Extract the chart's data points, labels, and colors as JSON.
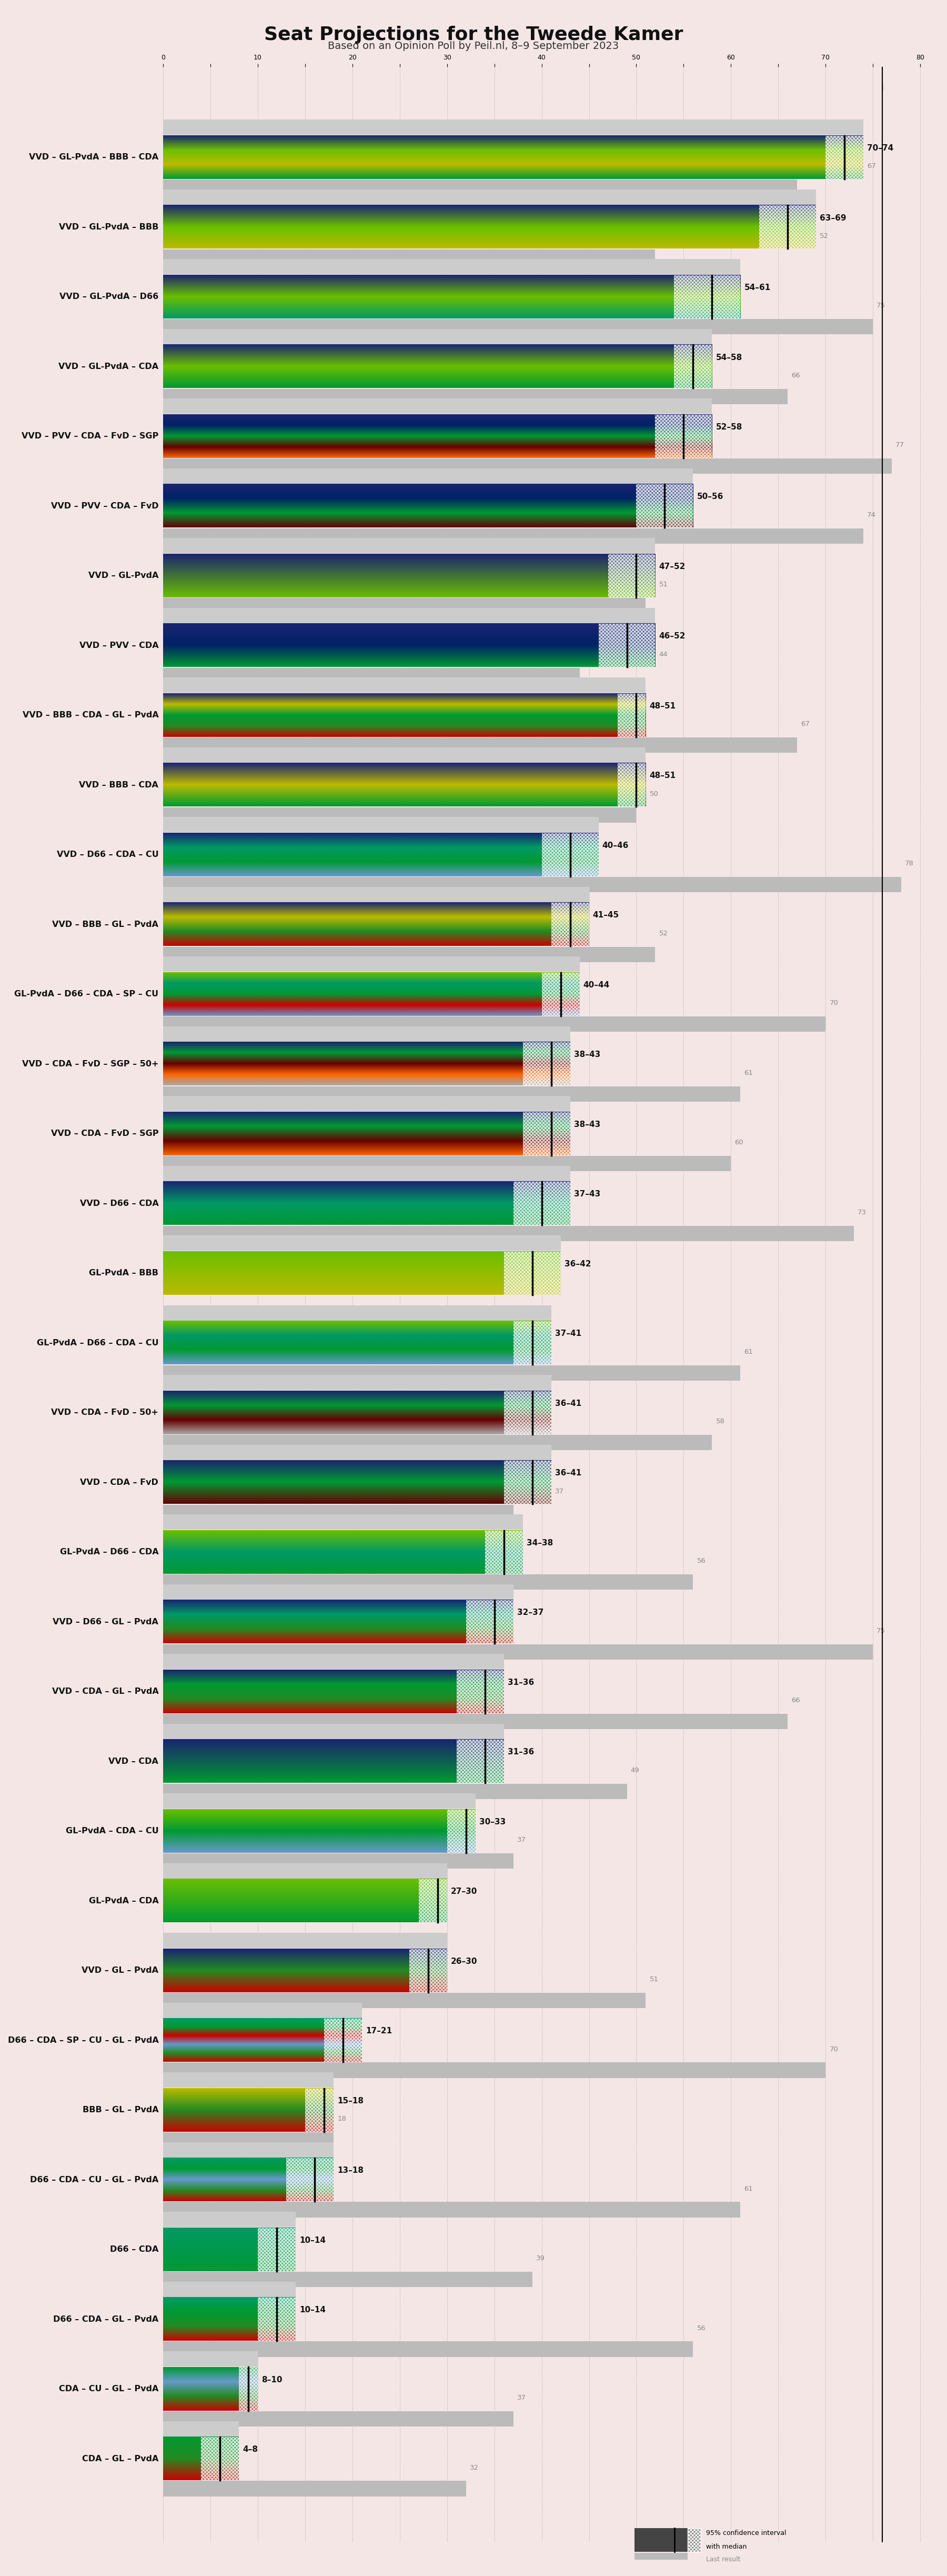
{
  "title": "Seat Projections for the Tweede Kamer",
  "subtitle": "Based on an Opinion Poll by Peil.nl, 8–9 September 2023",
  "background_color": "#f5e6e6",
  "majority": 76,
  "coalitions": [
    {
      "label": "VVD – GL-PvdA – BBB – CDA",
      "low": 70,
      "high": 74,
      "median": 72,
      "last": 67,
      "colors": [
        "#1a2472",
        "#6abf00",
        "#bbbb00",
        "#009933"
      ],
      "underlined": false
    },
    {
      "label": "VVD – GL-PvdA – BBB",
      "low": 63,
      "high": 69,
      "median": 66,
      "last": 52,
      "colors": [
        "#1a2472",
        "#6abf00",
        "#bbbb00"
      ],
      "underlined": false
    },
    {
      "label": "VVD – GL-PvdA – D66",
      "low": 54,
      "high": 61,
      "median": 58,
      "last": 75,
      "colors": [
        "#1a2472",
        "#6abf00",
        "#009966"
      ],
      "underlined": false
    },
    {
      "label": "VVD – GL-PvdA – CDA",
      "low": 54,
      "high": 58,
      "median": 56,
      "last": 66,
      "colors": [
        "#1a2472",
        "#6abf00",
        "#009933"
      ],
      "underlined": false
    },
    {
      "label": "VVD – PVV – CDA – FvD – SGP",
      "low": 52,
      "high": 58,
      "median": 55,
      "last": 77,
      "colors": [
        "#1a2472",
        "#002266",
        "#009933",
        "#660000",
        "#ff6600"
      ],
      "underlined": false
    },
    {
      "label": "VVD – PVV – CDA – FvD",
      "low": 50,
      "high": 56,
      "median": 53,
      "last": 74,
      "colors": [
        "#1a2472",
        "#002266",
        "#009933",
        "#660000"
      ],
      "underlined": false
    },
    {
      "label": "VVD – GL-PvdA",
      "low": 47,
      "high": 52,
      "median": 50,
      "last": 51,
      "colors": [
        "#1a2472",
        "#6abf00"
      ],
      "underlined": false
    },
    {
      "label": "VVD – PVV – CDA",
      "low": 46,
      "high": 52,
      "median": 49,
      "last": 44,
      "colors": [
        "#1a2472",
        "#002266",
        "#009933"
      ],
      "underlined": false
    },
    {
      "label": "VVD – BBB – CDA – GL – PvdA",
      "low": 48,
      "high": 51,
      "median": 50,
      "last": 67,
      "colors": [
        "#1a2472",
        "#bbbb00",
        "#009933",
        "#228B22",
        "#cc0000"
      ],
      "underlined": false
    },
    {
      "label": "VVD – BBB – CDA",
      "low": 48,
      "high": 51,
      "median": 50,
      "last": 50,
      "colors": [
        "#1a2472",
        "#bbbb00",
        "#009933"
      ],
      "underlined": false
    },
    {
      "label": "VVD – D66 – CDA – CU",
      "low": 40,
      "high": 46,
      "median": 43,
      "last": 78,
      "colors": [
        "#1a2472",
        "#009966",
        "#009933",
        "#6699cc"
      ],
      "underlined": true
    },
    {
      "label": "VVD – BBB – GL – PvdA",
      "low": 41,
      "high": 45,
      "median": 43,
      "last": 52,
      "colors": [
        "#1a2472",
        "#bbbb00",
        "#228B22",
        "#cc0000"
      ],
      "underlined": false
    },
    {
      "label": "GL-PvdA – D66 – CDA – SP – CU",
      "low": 40,
      "high": 44,
      "median": 42,
      "last": 70,
      "colors": [
        "#6abf00",
        "#009966",
        "#009933",
        "#cc0000",
        "#6699cc"
      ],
      "underlined": false
    },
    {
      "label": "VVD – CDA – FvD – SGP – 50+",
      "low": 38,
      "high": 43,
      "median": 41,
      "last": 61,
      "colors": [
        "#1a2472",
        "#009933",
        "#660000",
        "#ff6600",
        "#aaaaaa"
      ],
      "underlined": false
    },
    {
      "label": "VVD – CDA – FvD – SGP",
      "low": 38,
      "high": 43,
      "median": 41,
      "last": 60,
      "colors": [
        "#1a2472",
        "#009933",
        "#660000",
        "#ff6600"
      ],
      "underlined": false
    },
    {
      "label": "VVD – D66 – CDA",
      "low": 37,
      "high": 43,
      "median": 40,
      "last": 73,
      "colors": [
        "#1a2472",
        "#009966",
        "#009933"
      ],
      "underlined": false
    },
    {
      "label": "GL-PvdA – BBB",
      "low": 36,
      "high": 42,
      "median": 39,
      "last": null,
      "colors": [
        "#6abf00",
        "#bbbb00"
      ],
      "underlined": false
    },
    {
      "label": "GL-PvdA – D66 – CDA – CU",
      "low": 37,
      "high": 41,
      "median": 39,
      "last": 61,
      "colors": [
        "#6abf00",
        "#009966",
        "#009933",
        "#6699cc"
      ],
      "underlined": false
    },
    {
      "label": "VVD – CDA – FvD – 50+",
      "low": 36,
      "high": 41,
      "median": 39,
      "last": 58,
      "colors": [
        "#1a2472",
        "#009933",
        "#660000",
        "#aaaaaa"
      ],
      "underlined": false
    },
    {
      "label": "VVD – CDA – FvD",
      "low": 36,
      "high": 41,
      "median": 39,
      "last": 37,
      "colors": [
        "#1a2472",
        "#009933",
        "#660000"
      ],
      "underlined": false
    },
    {
      "label": "GL-PvdA – D66 – CDA",
      "low": 34,
      "high": 38,
      "median": 36,
      "last": 56,
      "colors": [
        "#6abf00",
        "#009966",
        "#009933"
      ],
      "underlined": false
    },
    {
      "label": "VVD – D66 – GL – PvdA",
      "low": 32,
      "high": 37,
      "median": 35,
      "last": 75,
      "colors": [
        "#1a2472",
        "#009966",
        "#228B22",
        "#cc0000"
      ],
      "underlined": false
    },
    {
      "label": "VVD – CDA – GL – PvdA",
      "low": 31,
      "high": 36,
      "median": 34,
      "last": 66,
      "colors": [
        "#1a2472",
        "#009933",
        "#228B22",
        "#cc0000"
      ],
      "underlined": false
    },
    {
      "label": "VVD – CDA",
      "low": 31,
      "high": 36,
      "median": 34,
      "last": 49,
      "colors": [
        "#1a2472",
        "#009933"
      ],
      "underlined": false
    },
    {
      "label": "GL-PvdA – CDA – CU",
      "low": 30,
      "high": 33,
      "median": 32,
      "last": 37,
      "colors": [
        "#6abf00",
        "#009933",
        "#6699cc"
      ],
      "underlined": false
    },
    {
      "label": "GL-PvdA – CDA",
      "low": 27,
      "high": 30,
      "median": 29,
      "last": null,
      "colors": [
        "#6abf00",
        "#009933"
      ],
      "underlined": false
    },
    {
      "label": "VVD – GL – PvdA",
      "low": 26,
      "high": 30,
      "median": 28,
      "last": 51,
      "colors": [
        "#1a2472",
        "#228B22",
        "#cc0000"
      ],
      "underlined": false
    },
    {
      "label": "D66 – CDA – SP – CU – GL – PvdA",
      "low": 17,
      "high": 21,
      "median": 19,
      "last": 70,
      "colors": [
        "#009966",
        "#009933",
        "#cc0000",
        "#6699cc",
        "#228B22",
        "#cc0000"
      ],
      "underlined": false
    },
    {
      "label": "BBB – GL – PvdA",
      "low": 15,
      "high": 18,
      "median": 17,
      "last": 18,
      "colors": [
        "#bbbb00",
        "#228B22",
        "#cc0000"
      ],
      "underlined": false
    },
    {
      "label": "D66 – CDA – CU – GL – PvdA",
      "low": 13,
      "high": 18,
      "median": 16,
      "last": 61,
      "colors": [
        "#009966",
        "#009933",
        "#6699cc",
        "#228B22",
        "#cc0000"
      ],
      "underlined": false
    },
    {
      "label": "D66 – CDA",
      "low": 10,
      "high": 14,
      "median": 12,
      "last": 39,
      "colors": [
        "#009966",
        "#009933"
      ],
      "underlined": false
    },
    {
      "label": "D66 – CDA – GL – PvdA",
      "low": 10,
      "high": 14,
      "median": 12,
      "last": 56,
      "colors": [
        "#009966",
        "#009933",
        "#228B22",
        "#cc0000"
      ],
      "underlined": false
    },
    {
      "label": "CDA – CU – GL – PvdA",
      "low": 8,
      "high": 10,
      "median": 9,
      "last": 37,
      "colors": [
        "#009933",
        "#6699cc",
        "#228B22",
        "#cc0000"
      ],
      "underlined": false
    },
    {
      "label": "CDA – GL – PvdA",
      "low": 4,
      "high": 8,
      "median": 6,
      "last": 32,
      "colors": [
        "#009933",
        "#228B22",
        "#cc0000"
      ],
      "underlined": false
    }
  ]
}
